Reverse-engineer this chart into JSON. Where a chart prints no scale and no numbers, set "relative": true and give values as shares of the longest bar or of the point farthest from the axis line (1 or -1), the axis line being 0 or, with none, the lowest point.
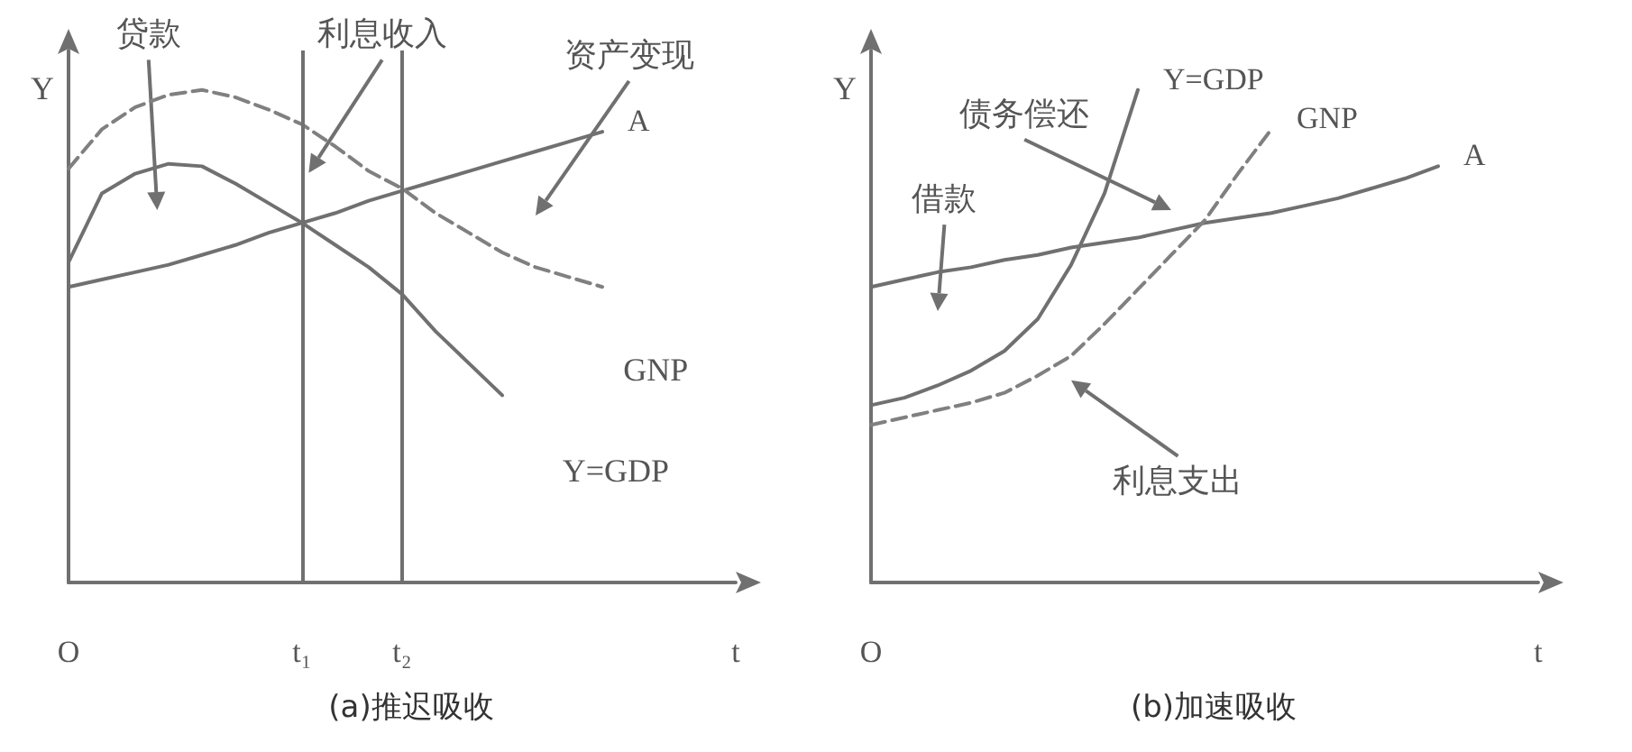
{
  "chart_data": [
    {
      "type": "line",
      "title": "(a)推迟吸收",
      "ylabel": "Y",
      "relative": true,
      "grid": false,
      "legend": false,
      "marker": "none",
      "categories": [
        "O",
        null,
        null,
        null,
        null,
        null,
        null,
        "t₁",
        null,
        null,
        "t₂",
        null,
        null,
        null,
        null,
        null,
        null,
        null,
        null,
        null,
        "t"
      ],
      "series": [
        {
          "name": "A",
          "color": "#707070",
          "line_style": "solid",
          "values": [
            0.6,
            0.615,
            0.63,
            0.645,
            0.665,
            0.685,
            0.71,
            0.73,
            0.75,
            0.775,
            0.795,
            0.815,
            0.835,
            0.855,
            0.875,
            0.895,
            0.915,
            null,
            null,
            null,
            null
          ]
        },
        {
          "color": "#707070",
          "line_style": "solid",
          "values": [
            0.65,
            0.79,
            0.83,
            0.85,
            0.845,
            0.81,
            0.77,
            0.73,
            0.685,
            0.64,
            0.585,
            0.51,
            0.445,
            0.38,
            null,
            null,
            null,
            null,
            null,
            null,
            null
          ]
        },
        {
          "color": "#808080",
          "line_style": "dashed",
          "values": [
            0.84,
            0.92,
            0.965,
            0.99,
            1,
            0.985,
            0.96,
            0.93,
            0.885,
            0.835,
            0.8,
            0.75,
            0.71,
            0.67,
            0.64,
            0.62,
            0.6,
            null,
            null,
            null,
            null
          ]
        }
      ],
      "ref_lines": [
        {
          "axis": "x",
          "value": "t₁"
        },
        {
          "axis": "x",
          "value": "t₂"
        }
      ],
      "annotations": [
        "贷款",
        "利息收入",
        "资产变现",
        "GNP",
        "Y=GDP"
      ]
    },
    {
      "type": "line",
      "title": "(b)加速吸收",
      "ylabel": "Y",
      "relative": true,
      "grid": false,
      "legend": false,
      "marker": "none",
      "categories": [
        "O",
        null,
        null,
        null,
        null,
        null,
        null,
        null,
        null,
        null,
        null,
        null,
        null,
        null,
        null,
        null,
        null,
        null,
        null,
        null,
        "t"
      ],
      "series": [
        {
          "name": "A",
          "color": "#707070",
          "line_style": "solid",
          "values": [
            0.6,
            0.615,
            0.63,
            0.64,
            0.655,
            0.665,
            0.68,
            0.69,
            0.7,
            0.715,
            0.73,
            0.74,
            0.75,
            0.765,
            0.78,
            0.8,
            0.82,
            0.845,
            null,
            null,
            null
          ]
        },
        {
          "name": "Y=GDP",
          "color": "#707070",
          "line_style": "solid",
          "values": [
            0.36,
            0.375,
            0.4,
            0.43,
            0.47,
            0.535,
            0.645,
            0.79,
            1,
            null,
            null,
            null,
            null,
            null,
            null,
            null,
            null,
            null,
            null,
            null,
            null
          ]
        },
        {
          "name": "GNP",
          "color": "#808080",
          "line_style": "dashed",
          "values": [
            0.32,
            0.335,
            0.35,
            0.365,
            0.385,
            0.42,
            0.46,
            0.525,
            0.595,
            0.665,
            0.735,
            0.83,
            0.92,
            null,
            null,
            null,
            null,
            null,
            null,
            null,
            null
          ]
        }
      ],
      "annotations": [
        "债务偿还",
        "借款",
        "利息支出"
      ]
    }
  ]
}
